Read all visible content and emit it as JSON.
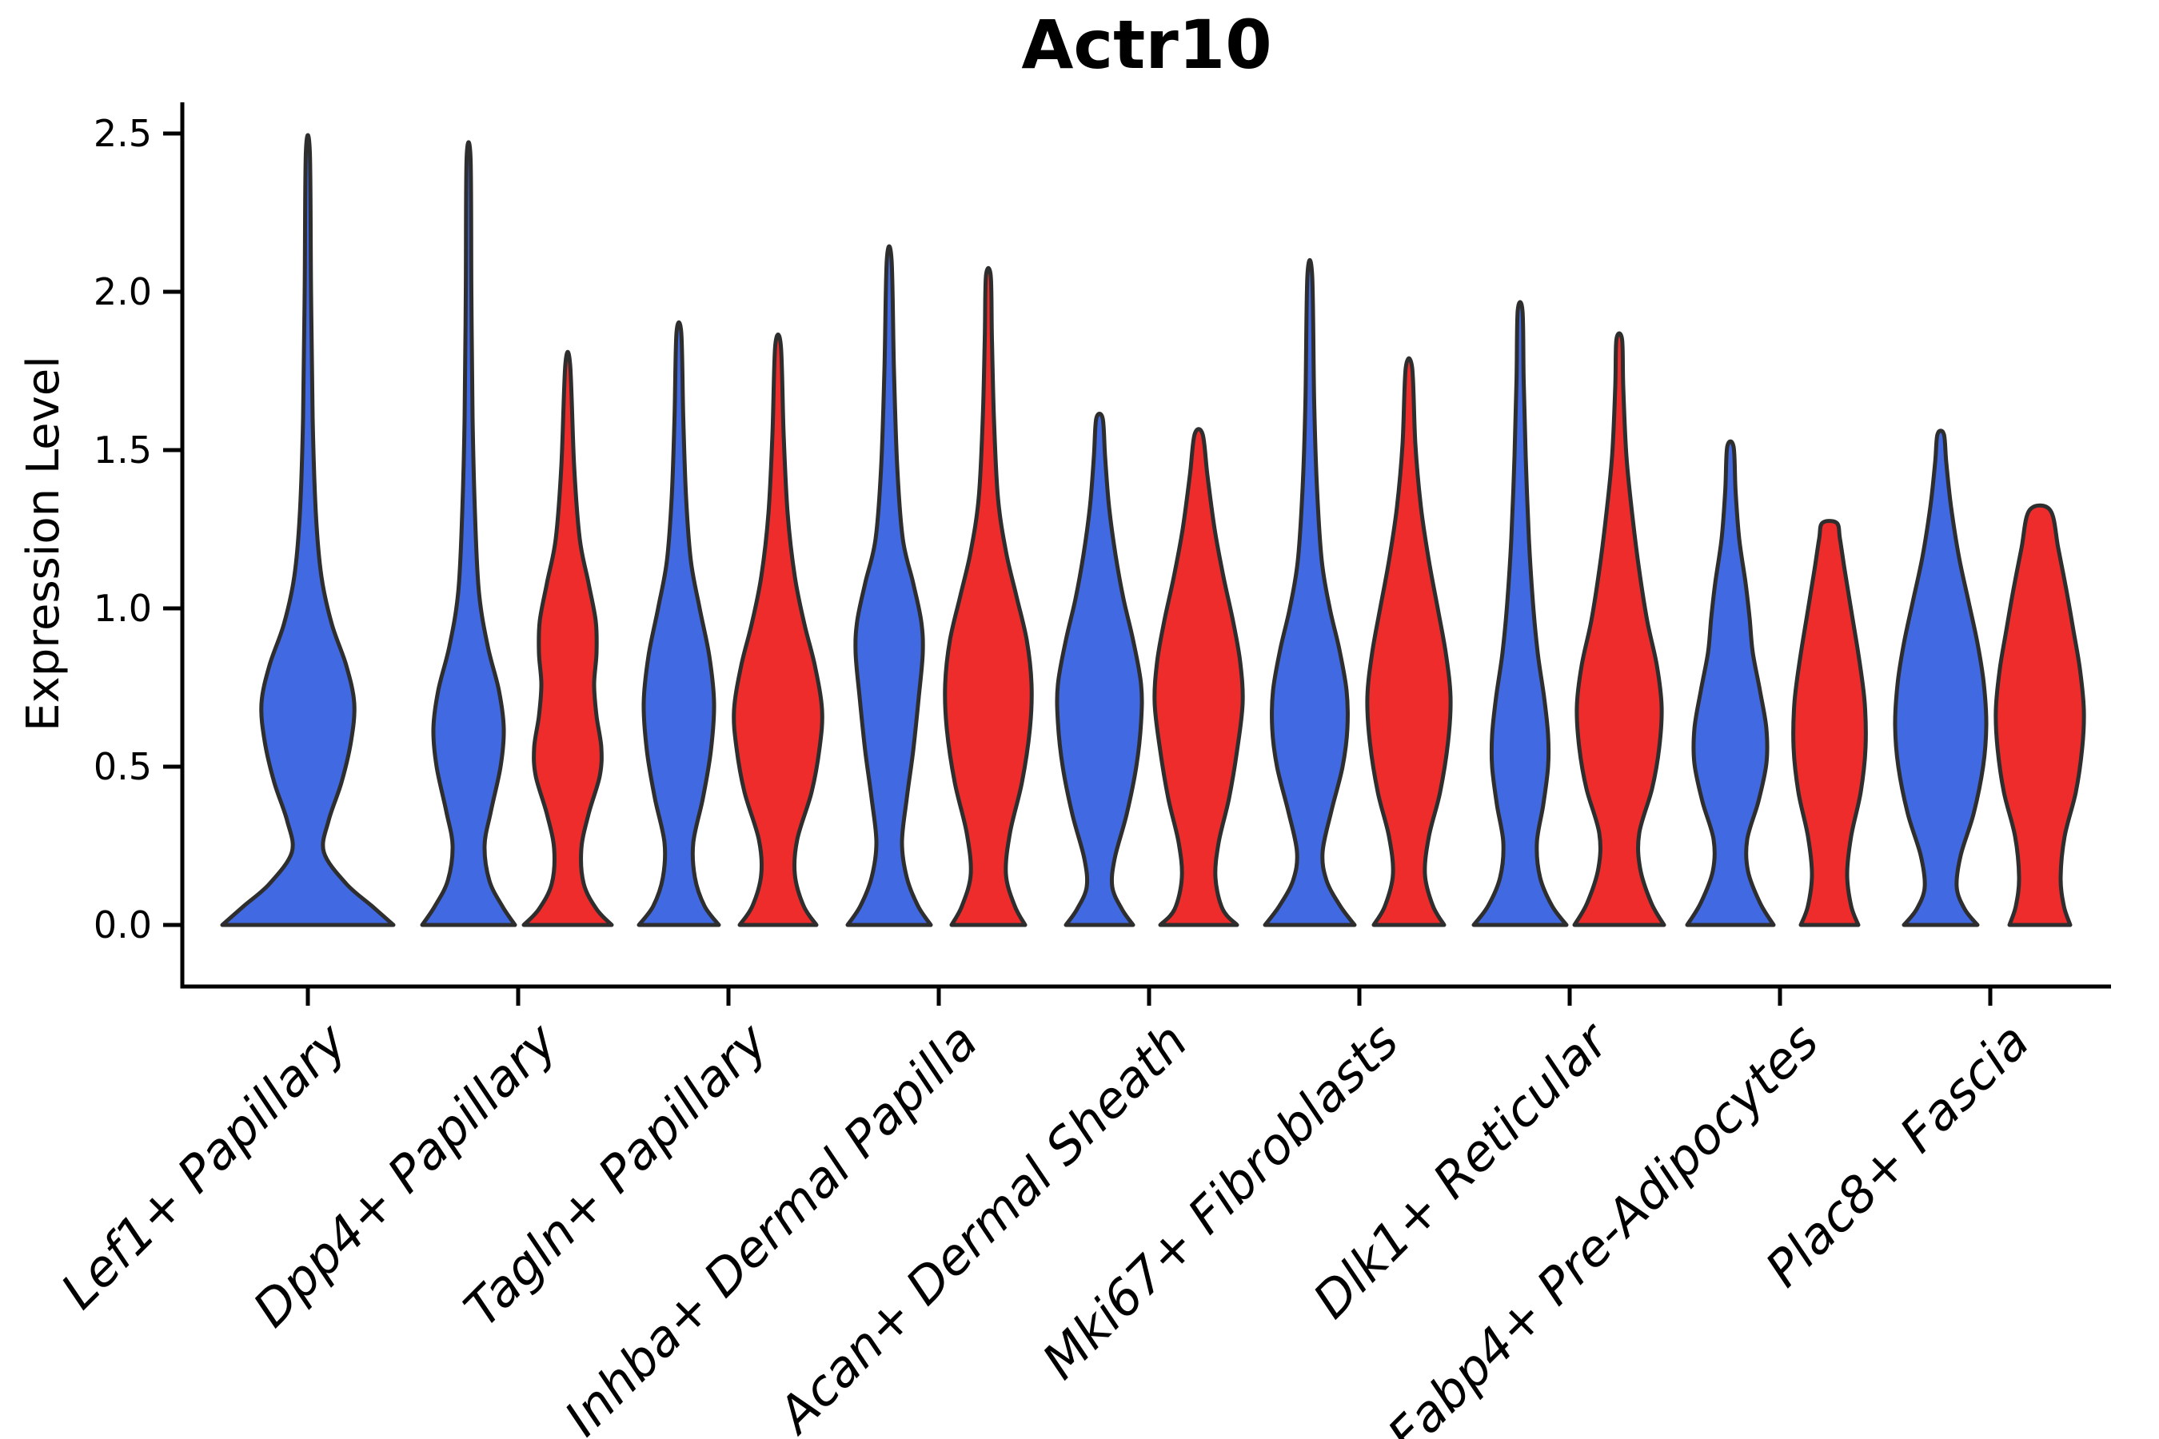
{
  "title": "Actr10",
  "axes": {
    "y": {
      "label": "Expression Level",
      "ticks": [
        {
          "label": "0.0",
          "value": 0.0
        },
        {
          "label": "0.5",
          "value": 0.5
        },
        {
          "label": "1.0",
          "value": 1.0
        },
        {
          "label": "1.5",
          "value": 1.5
        },
        {
          "label": "2.0",
          "value": 2.0
        },
        {
          "label": "2.5",
          "value": 2.5
        }
      ],
      "range": [
        0,
        2.5
      ]
    },
    "x": {
      "categories": [
        "Lef1+ Papillary",
        "Dpp4+ Papillary",
        "Tagln+ Papillary",
        "Inhba+ Dermal Papilla",
        "Acan+ Dermal Sheath",
        "Mki67+ Fibroblasts",
        "Dlk1+ Reticular",
        "Fabp4+ Pre-Adipocytes",
        "Plac8+ Fascia"
      ]
    }
  },
  "colors": {
    "blue": "#4169E1",
    "red": "#EE2C2C",
    "outline": "#2E2E2E",
    "axis": "#000000",
    "background": "#FFFFFF"
  },
  "chart_data": {
    "type": "violin",
    "title": "Actr10",
    "xlabel": "",
    "ylabel": "Expression Level",
    "ylim": [
      0,
      2.5
    ],
    "grid": false,
    "legend": "none",
    "categories": [
      "Lef1+ Papillary",
      "Dpp4+ Papillary",
      "Tagln+ Papillary",
      "Inhba+ Dermal Papilla",
      "Acan+ Dermal Sheath",
      "Mki67+ Fibroblasts",
      "Dlk1+ Reticular",
      "Fabp4+ Pre-Adipocytes",
      "Plac8+ Fascia"
    ],
    "series": [
      {
        "name": "condition-blue",
        "color_key": "blue"
      },
      {
        "name": "condition-red",
        "color_key": "red"
      }
    ],
    "profile_note": "profile = KDE outline as [expression_value, half_width_px] pairs from base (0) to violin tip",
    "violins": [
      {
        "category": 0,
        "series": 0,
        "position": "full",
        "max_expression": 2.44,
        "truncated_top": false,
        "profile": [
          [
            0,
            107
          ],
          [
            0.06,
            80
          ],
          [
            0.13,
            48
          ],
          [
            0.23,
            20
          ],
          [
            0.33,
            26
          ],
          [
            0.45,
            42
          ],
          [
            0.58,
            54
          ],
          [
            0.7,
            58
          ],
          [
            0.82,
            48
          ],
          [
            0.95,
            30
          ],
          [
            1.1,
            17
          ],
          [
            1.3,
            10
          ],
          [
            1.6,
            6
          ],
          [
            2.0,
            4
          ],
          [
            2.44,
            2.5
          ]
        ]
      },
      {
        "category": 1,
        "series": 0,
        "position": "left",
        "max_expression": 2.42,
        "truncated_top": false,
        "profile": [
          [
            0,
            58
          ],
          [
            0.06,
            42
          ],
          [
            0.14,
            26
          ],
          [
            0.25,
            20
          ],
          [
            0.36,
            28
          ],
          [
            0.5,
            40
          ],
          [
            0.62,
            44
          ],
          [
            0.74,
            38
          ],
          [
            0.88,
            24
          ],
          [
            1.05,
            13
          ],
          [
            1.3,
            8
          ],
          [
            1.6,
            5
          ],
          [
            2.0,
            3.5
          ],
          [
            2.42,
            2.5
          ]
        ]
      },
      {
        "category": 1,
        "series": 1,
        "position": "right",
        "max_expression": 1.77,
        "truncated_top": false,
        "profile": [
          [
            0,
            55
          ],
          [
            0.05,
            36
          ],
          [
            0.13,
            20
          ],
          [
            0.24,
            17
          ],
          [
            0.35,
            26
          ],
          [
            0.47,
            40
          ],
          [
            0.56,
            42
          ],
          [
            0.66,
            36
          ],
          [
            0.76,
            33
          ],
          [
            0.86,
            36
          ],
          [
            0.96,
            35
          ],
          [
            1.08,
            26
          ],
          [
            1.22,
            15
          ],
          [
            1.45,
            8
          ],
          [
            1.77,
            3
          ]
        ]
      },
      {
        "category": 2,
        "series": 0,
        "position": "left",
        "max_expression": 1.87,
        "truncated_top": false,
        "profile": [
          [
            0,
            50
          ],
          [
            0.06,
            32
          ],
          [
            0.15,
            20
          ],
          [
            0.26,
            18
          ],
          [
            0.4,
            30
          ],
          [
            0.55,
            40
          ],
          [
            0.7,
            44
          ],
          [
            0.85,
            38
          ],
          [
            1.0,
            26
          ],
          [
            1.15,
            15
          ],
          [
            1.35,
            9
          ],
          [
            1.6,
            5.5
          ],
          [
            1.87,
            3
          ]
        ]
      },
      {
        "category": 2,
        "series": 1,
        "position": "right",
        "max_expression": 1.83,
        "truncated_top": false,
        "profile": [
          [
            0,
            48
          ],
          [
            0.06,
            32
          ],
          [
            0.16,
            21
          ],
          [
            0.27,
            24
          ],
          [
            0.42,
            42
          ],
          [
            0.56,
            52
          ],
          [
            0.68,
            55
          ],
          [
            0.82,
            46
          ],
          [
            0.95,
            33
          ],
          [
            1.1,
            21
          ],
          [
            1.3,
            12
          ],
          [
            1.55,
            7
          ],
          [
            1.83,
            3.5
          ]
        ]
      },
      {
        "category": 3,
        "series": 0,
        "position": "left",
        "max_expression": 2.1,
        "truncated_top": false,
        "profile": [
          [
            0,
            52
          ],
          [
            0.06,
            36
          ],
          [
            0.15,
            22
          ],
          [
            0.26,
            16
          ],
          [
            0.4,
            22
          ],
          [
            0.55,
            30
          ],
          [
            0.72,
            37
          ],
          [
            0.86,
            42
          ],
          [
            0.96,
            40
          ],
          [
            1.08,
            30
          ],
          [
            1.22,
            17
          ],
          [
            1.45,
            10
          ],
          [
            1.75,
            6
          ],
          [
            2.1,
            3
          ]
        ]
      },
      {
        "category": 3,
        "series": 1,
        "position": "right",
        "max_expression": 2.05,
        "truncated_top": false,
        "profile": [
          [
            0,
            46
          ],
          [
            0.06,
            33
          ],
          [
            0.16,
            22
          ],
          [
            0.29,
            27
          ],
          [
            0.45,
            42
          ],
          [
            0.62,
            52
          ],
          [
            0.76,
            54
          ],
          [
            0.9,
            48
          ],
          [
            1.04,
            35
          ],
          [
            1.18,
            22
          ],
          [
            1.35,
            12
          ],
          [
            1.6,
            7
          ],
          [
            1.85,
            4.5
          ],
          [
            2.05,
            3
          ]
        ]
      },
      {
        "category": 4,
        "series": 0,
        "position": "left",
        "max_expression": 1.6,
        "truncated_top": false,
        "profile": [
          [
            0,
            42
          ],
          [
            0.05,
            28
          ],
          [
            0.12,
            16
          ],
          [
            0.21,
            19
          ],
          [
            0.35,
            34
          ],
          [
            0.5,
            46
          ],
          [
            0.64,
            52
          ],
          [
            0.76,
            52
          ],
          [
            0.9,
            42
          ],
          [
            1.03,
            30
          ],
          [
            1.17,
            20
          ],
          [
            1.32,
            12
          ],
          [
            1.48,
            7
          ],
          [
            1.6,
            4
          ]
        ]
      },
      {
        "category": 4,
        "series": 1,
        "position": "right",
        "max_expression": 1.55,
        "truncated_top": false,
        "profile": [
          [
            0,
            48
          ],
          [
            0.05,
            30
          ],
          [
            0.15,
            21
          ],
          [
            0.26,
            25
          ],
          [
            0.4,
            38
          ],
          [
            0.55,
            48
          ],
          [
            0.7,
            55
          ],
          [
            0.83,
            52
          ],
          [
            0.96,
            43
          ],
          [
            1.1,
            31
          ],
          [
            1.25,
            20
          ],
          [
            1.42,
            11
          ],
          [
            1.55,
            5
          ]
        ]
      },
      {
        "category": 5,
        "series": 0,
        "position": "left",
        "max_expression": 2.05,
        "truncated_top": false,
        "profile": [
          [
            0,
            56
          ],
          [
            0.06,
            38
          ],
          [
            0.14,
            21
          ],
          [
            0.23,
            16
          ],
          [
            0.36,
            27
          ],
          [
            0.5,
            41
          ],
          [
            0.62,
            47
          ],
          [
            0.74,
            46
          ],
          [
            0.87,
            37
          ],
          [
            1.0,
            25
          ],
          [
            1.15,
            15
          ],
          [
            1.38,
            9
          ],
          [
            1.65,
            5.5
          ],
          [
            2.05,
            3
          ]
        ]
      },
      {
        "category": 5,
        "series": 1,
        "position": "right",
        "max_expression": 1.76,
        "truncated_top": false,
        "profile": [
          [
            0,
            44
          ],
          [
            0.06,
            30
          ],
          [
            0.16,
            20
          ],
          [
            0.28,
            25
          ],
          [
            0.42,
            39
          ],
          [
            0.58,
            49
          ],
          [
            0.72,
            52
          ],
          [
            0.86,
            46
          ],
          [
            1.0,
            36
          ],
          [
            1.15,
            25
          ],
          [
            1.32,
            15
          ],
          [
            1.52,
            8
          ],
          [
            1.76,
            4
          ]
        ]
      },
      {
        "category": 6,
        "series": 0,
        "position": "left",
        "max_expression": 1.94,
        "truncated_top": false,
        "profile": [
          [
            0,
            58
          ],
          [
            0.06,
            40
          ],
          [
            0.15,
            25
          ],
          [
            0.26,
            21
          ],
          [
            0.38,
            29
          ],
          [
            0.5,
            35
          ],
          [
            0.6,
            35
          ],
          [
            0.72,
            30
          ],
          [
            0.86,
            22
          ],
          [
            1.02,
            16
          ],
          [
            1.22,
            11
          ],
          [
            1.48,
            7
          ],
          [
            1.72,
            4.5
          ],
          [
            1.94,
            3
          ]
        ]
      },
      {
        "category": 6,
        "series": 1,
        "position": "right",
        "max_expression": 1.85,
        "truncated_top": false,
        "profile": [
          [
            0,
            56
          ],
          [
            0.07,
            40
          ],
          [
            0.18,
            26
          ],
          [
            0.29,
            25
          ],
          [
            0.43,
            41
          ],
          [
            0.56,
            50
          ],
          [
            0.69,
            53
          ],
          [
            0.82,
            47
          ],
          [
            0.96,
            35
          ],
          [
            1.12,
            25
          ],
          [
            1.28,
            17
          ],
          [
            1.48,
            9
          ],
          [
            1.7,
            5
          ],
          [
            1.85,
            3.5
          ]
        ]
      },
      {
        "category": 7,
        "series": 0,
        "position": "left",
        "max_expression": 1.51,
        "truncated_top": false,
        "profile": [
          [
            0,
            54
          ],
          [
            0.07,
            37
          ],
          [
            0.17,
            22
          ],
          [
            0.27,
            21
          ],
          [
            0.39,
            35
          ],
          [
            0.51,
            45
          ],
          [
            0.62,
            45
          ],
          [
            0.74,
            37
          ],
          [
            0.86,
            28
          ],
          [
            0.97,
            24
          ],
          [
            1.08,
            19
          ],
          [
            1.22,
            11
          ],
          [
            1.37,
            6.5
          ],
          [
            1.51,
            4
          ]
        ]
      },
      {
        "category": 7,
        "series": 1,
        "position": "right",
        "max_expression": 1.27,
        "truncated_top": true,
        "profile": [
          [
            0,
            36
          ],
          [
            0.06,
            27
          ],
          [
            0.16,
            22
          ],
          [
            0.28,
            27
          ],
          [
            0.42,
            39
          ],
          [
            0.56,
            45
          ],
          [
            0.7,
            44
          ],
          [
            0.84,
            37
          ],
          [
            0.98,
            28
          ],
          [
            1.12,
            19
          ],
          [
            1.22,
            13
          ],
          [
            1.27,
            9
          ]
        ]
      },
      {
        "category": 8,
        "series": 0,
        "position": "left",
        "max_expression": 1.55,
        "truncated_top": false,
        "profile": [
          [
            0,
            46
          ],
          [
            0.05,
            30
          ],
          [
            0.12,
            20
          ],
          [
            0.22,
            25
          ],
          [
            0.35,
            41
          ],
          [
            0.5,
            53
          ],
          [
            0.63,
            57
          ],
          [
            0.76,
            54
          ],
          [
            0.89,
            46
          ],
          [
            1.02,
            35
          ],
          [
            1.16,
            23
          ],
          [
            1.32,
            13
          ],
          [
            1.46,
            7
          ],
          [
            1.55,
            4
          ]
        ]
      },
      {
        "category": 8,
        "series": 1,
        "position": "right",
        "max_expression": 1.31,
        "truncated_top": true,
        "profile": [
          [
            0,
            38
          ],
          [
            0.06,
            30
          ],
          [
            0.15,
            26
          ],
          [
            0.28,
            31
          ],
          [
            0.42,
            45
          ],
          [
            0.56,
            53
          ],
          [
            0.68,
            55
          ],
          [
            0.81,
            50
          ],
          [
            0.93,
            42
          ],
          [
            1.06,
            33
          ],
          [
            1.19,
            23
          ],
          [
            1.31,
            13
          ]
        ]
      }
    ]
  }
}
